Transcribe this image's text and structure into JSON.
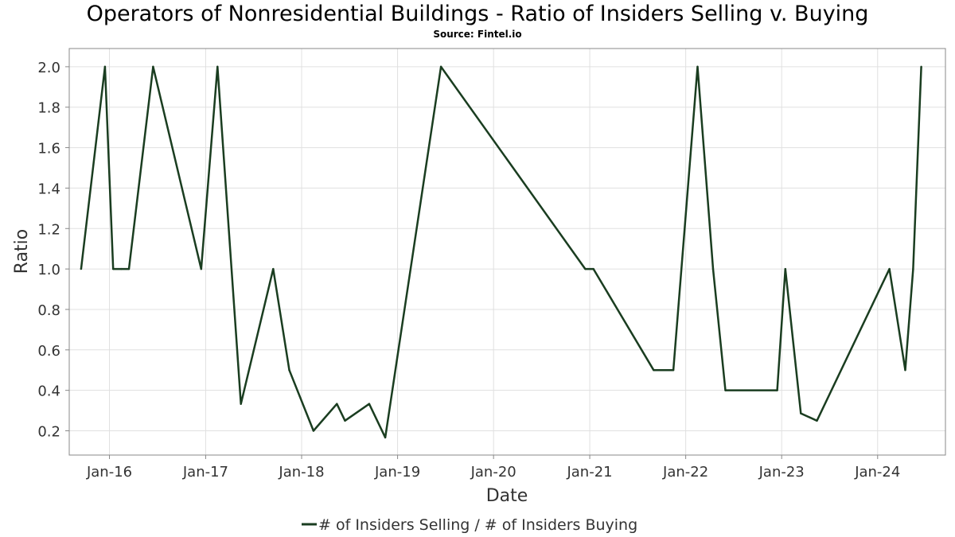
{
  "chart_data": {
    "type": "line",
    "title": "Operators of Nonresidential Buildings - Ratio of Insiders Selling v. Buying",
    "subtitle": "Source: Fintel.io",
    "xlabel": "Date",
    "ylabel": "Ratio",
    "x_ticks": [
      {
        "date": "2016-01-01",
        "label": "Jan-16"
      },
      {
        "date": "2017-01-01",
        "label": "Jan-17"
      },
      {
        "date": "2018-01-01",
        "label": "Jan-18"
      },
      {
        "date": "2019-01-01",
        "label": "Jan-19"
      },
      {
        "date": "2020-01-01",
        "label": "Jan-20"
      },
      {
        "date": "2021-01-01",
        "label": "Jan-21"
      },
      {
        "date": "2022-01-01",
        "label": "Jan-22"
      },
      {
        "date": "2023-01-01",
        "label": "Jan-23"
      },
      {
        "date": "2024-01-01",
        "label": "Jan-24"
      }
    ],
    "y_ticks": [
      "0.2",
      "0.4",
      "0.6",
      "0.8",
      "1.0",
      "1.2",
      "1.4",
      "1.6",
      "1.8",
      "2.0"
    ],
    "xlim": [
      "2015-08-01",
      "2024-09-15"
    ],
    "ylim": [
      0.08,
      2.09
    ],
    "grid": true,
    "legend_position": "bottom-center",
    "series": [
      {
        "name": "# of Insiders Selling / # of Insiders Buying",
        "color": "#1a3d20",
        "x": [
          "2015-09-15",
          "2015-12-15",
          "2016-01-15",
          "2016-02-15",
          "2016-03-15",
          "2016-06-15",
          "2016-12-15",
          "2017-02-15",
          "2017-05-15",
          "2017-09-15",
          "2017-11-15",
          "2018-02-15",
          "2018-05-15",
          "2018-06-15",
          "2018-09-15",
          "2018-11-15",
          "2019-06-15",
          "2020-12-15",
          "2021-01-15",
          "2021-09-01",
          "2021-11-15",
          "2022-02-15",
          "2022-04-15",
          "2022-06-01",
          "2022-12-15",
          "2023-01-15",
          "2023-03-15",
          "2023-05-15",
          "2024-02-15",
          "2024-04-15",
          "2024-05-15",
          "2024-06-15"
        ],
        "y": [
          1.0,
          2.0,
          1.0,
          1.0,
          1.0,
          2.0,
          1.0,
          2.0,
          0.333,
          1.0,
          0.5,
          0.2,
          0.333,
          0.25,
          0.333,
          0.167,
          2.0,
          1.0,
          1.0,
          0.5,
          0.5,
          2.0,
          1.0,
          0.4,
          0.4,
          1.0,
          0.286,
          0.25,
          1.0,
          0.5,
          1.0,
          2.0
        ]
      }
    ]
  }
}
